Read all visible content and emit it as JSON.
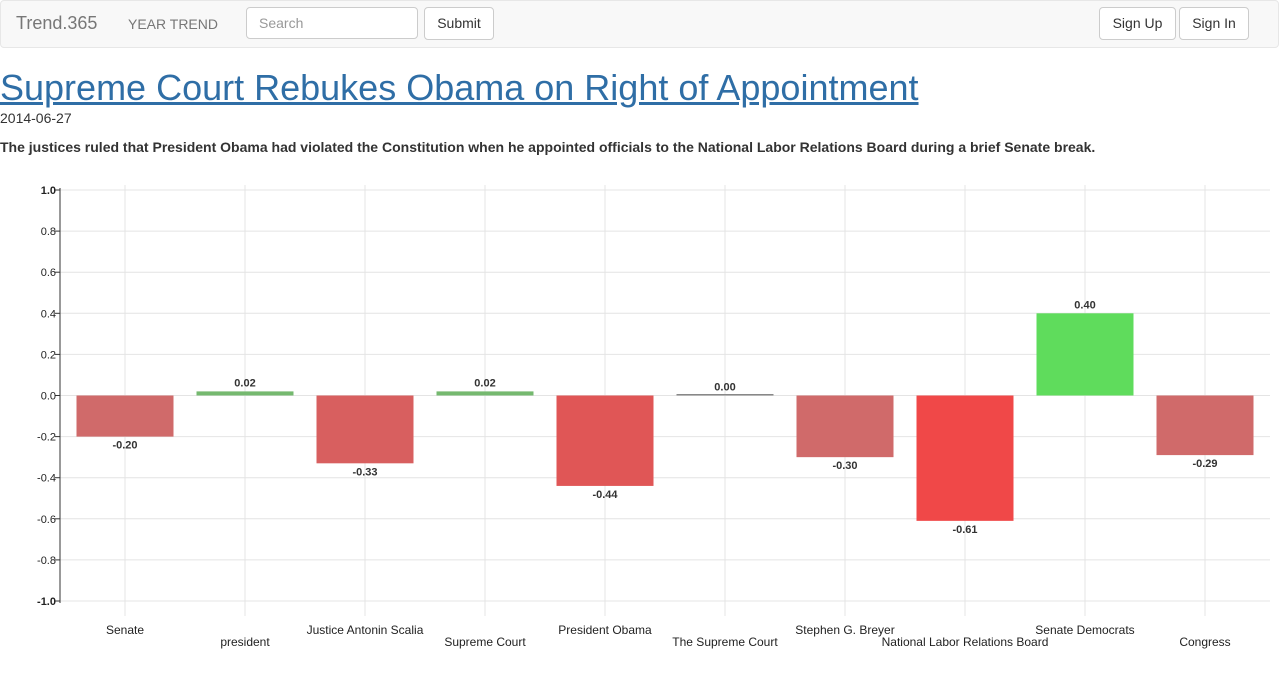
{
  "navbar": {
    "brand": "Trend.365",
    "year_trend": "YEAR TREND",
    "search_placeholder": "Search",
    "submit_label": "Submit",
    "signup_label": "Sign Up",
    "signin_label": "Sign In"
  },
  "article": {
    "title": "Supreme Court Rebukes Obama on Right of Appointment",
    "date": "2014-06-27",
    "summary": "The justices ruled that President Obama had violated the Constitution when he appointed officials to the National Labor Relations Board during a brief Senate break."
  },
  "chart_data": {
    "type": "bar",
    "categories": [
      "Senate",
      "president",
      "Justice Antonin Scalia",
      "Supreme Court",
      "President Obama",
      "The Supreme Court",
      "Stephen G. Breyer",
      "National Labor Relations Board",
      "Senate Democrats",
      "Congress"
    ],
    "values": [
      -0.2,
      0.02,
      -0.33,
      0.02,
      -0.44,
      0.0,
      -0.3,
      -0.61,
      0.4,
      -0.29
    ],
    "value_labels": [
      "-0.20",
      "0.02",
      "-0.33",
      "0.02",
      "-0.44",
      "0.00",
      "-0.30",
      "-0.61",
      "0.40",
      "-0.29"
    ],
    "colors": [
      "#d06a6a",
      "#75b96f",
      "#d85f5f",
      "#75b96f",
      "#e05656",
      "#888888",
      "#d06a6a",
      "#f04848",
      "#5fdc5c",
      "#d06a6a"
    ],
    "ylim": [
      -1.0,
      1.0
    ],
    "yticks": [
      "1.0",
      "0.8",
      "0.6",
      "0.4",
      "0.2",
      "0.0",
      "-0.2",
      "-0.4",
      "-0.6",
      "-0.8",
      "-1.0"
    ],
    "grid": true
  }
}
